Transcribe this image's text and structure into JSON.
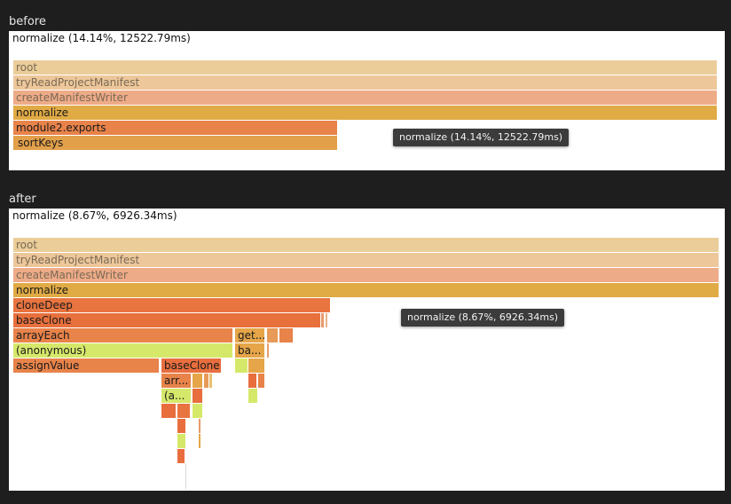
{
  "before": {
    "label": "before",
    "title": "normalize (14.14%, 12522.79ms)",
    "tooltip": "normalize (14.14%, 12522.79ms)",
    "frames": {
      "root": "root",
      "tryReadProjectManifest": "tryReadProjectManifest",
      "createManifestWriter": "createManifestWriter",
      "normalize": "normalize",
      "module2_exports": "module2.exports",
      "sortKeys": "sortKeys"
    }
  },
  "after": {
    "label": "after",
    "title": "normalize (8.67%, 6926.34ms)",
    "tooltip": "normalize (8.67%, 6926.34ms)",
    "frames": {
      "root": "root",
      "tryReadProjectManifest": "tryReadProjectManifest",
      "createManifestWriter": "createManifestWriter",
      "normalize": "normalize",
      "cloneDeep": "cloneDeep",
      "baseClone": "baseClone",
      "arrayEach": "arrayEach",
      "get_trunc": "get...",
      "anonymous": "(anonymous)",
      "ba_trunc": "ba...",
      "assignValue": "assignValue",
      "baseClone2": "baseClone",
      "arr_trunc": "arr...",
      "a_trunc": "(a..."
    }
  },
  "colors": {
    "root": "#ebcd99",
    "tryRead": "#edc79a",
    "createWriter": "#eeab88",
    "normalize": "#e0aa45",
    "orange": "#e8834a",
    "orangeRed": "#e86e3e",
    "lime": "#d6e86a",
    "amber": "#e5a548"
  }
}
